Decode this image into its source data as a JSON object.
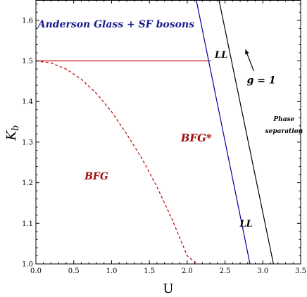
{
  "chart_data": {
    "type": "line",
    "xlabel": "U",
    "ylabel": "K",
    "ylabel_sub": "b",
    "xlim": [
      0.0,
      3.5
    ],
    "ylim": [
      1.0,
      1.65
    ],
    "x_ticks": [
      "0.0",
      "0.5",
      "1.0",
      "1.5",
      "2.0",
      "2.5",
      "3.0",
      "3.5"
    ],
    "y_ticks": [
      "1.0",
      "1.1",
      "1.2",
      "1.3",
      "1.4",
      "1.5",
      "1.6"
    ],
    "grid": false,
    "series": [
      {
        "style": "solid",
        "color": "#c00000",
        "x": [
          0.0,
          2.32
        ],
        "y": [
          1.5,
          1.5
        ]
      },
      {
        "style": "dashed",
        "color": "#c00000",
        "x": [
          0.0,
          0.2,
          0.4,
          0.6,
          0.8,
          1.0,
          1.2,
          1.4,
          1.6,
          1.8,
          2.0,
          2.2,
          2.4
        ],
        "y": [
          1.5,
          1.495,
          1.48,
          1.455,
          1.42,
          1.375,
          1.32,
          1.26,
          1.19,
          1.11,
          1.02,
          0.99,
          0.96
        ]
      },
      {
        "style": "solid",
        "color": "#0000a0",
        "x": [
          2.12,
          2.83
        ],
        "y": [
          1.65,
          1.0
        ]
      },
      {
        "style": "solid",
        "color": "#000000",
        "x": [
          2.42,
          3.14
        ],
        "y": [
          1.65,
          1.0
        ]
      }
    ],
    "annotations": [
      {
        "text": "Anderson Glass  +  SF bosons",
        "x": 1.06,
        "y": 1.582,
        "color": "#1a1a8c",
        "size": 14
      },
      {
        "text": "LL",
        "x": 2.45,
        "y": 1.508,
        "color": "#000000",
        "size": 13
      },
      {
        "text": "g = 1",
        "x": 2.98,
        "y": 1.445,
        "color": "#000000",
        "size": 14,
        "italic_plain": true
      },
      {
        "text": "Phase",
        "x": 3.28,
        "y": 1.352,
        "color": "#000000",
        "size": 9
      },
      {
        "text": "separation",
        "x": 3.28,
        "y": 1.322,
        "color": "#000000",
        "size": 9
      },
      {
        "text": "BFG*",
        "x": 2.12,
        "y": 1.302,
        "color": "#a01010",
        "size": 15
      },
      {
        "text": "BFG",
        "x": 0.8,
        "y": 1.208,
        "color": "#a01010",
        "size": 14
      },
      {
        "text": "LL",
        "x": 2.78,
        "y": 1.092,
        "color": "#000000",
        "size": 13
      }
    ],
    "arrow": {
      "from": [
        2.88,
        1.475
      ],
      "to": [
        2.77,
        1.528
      ]
    }
  }
}
